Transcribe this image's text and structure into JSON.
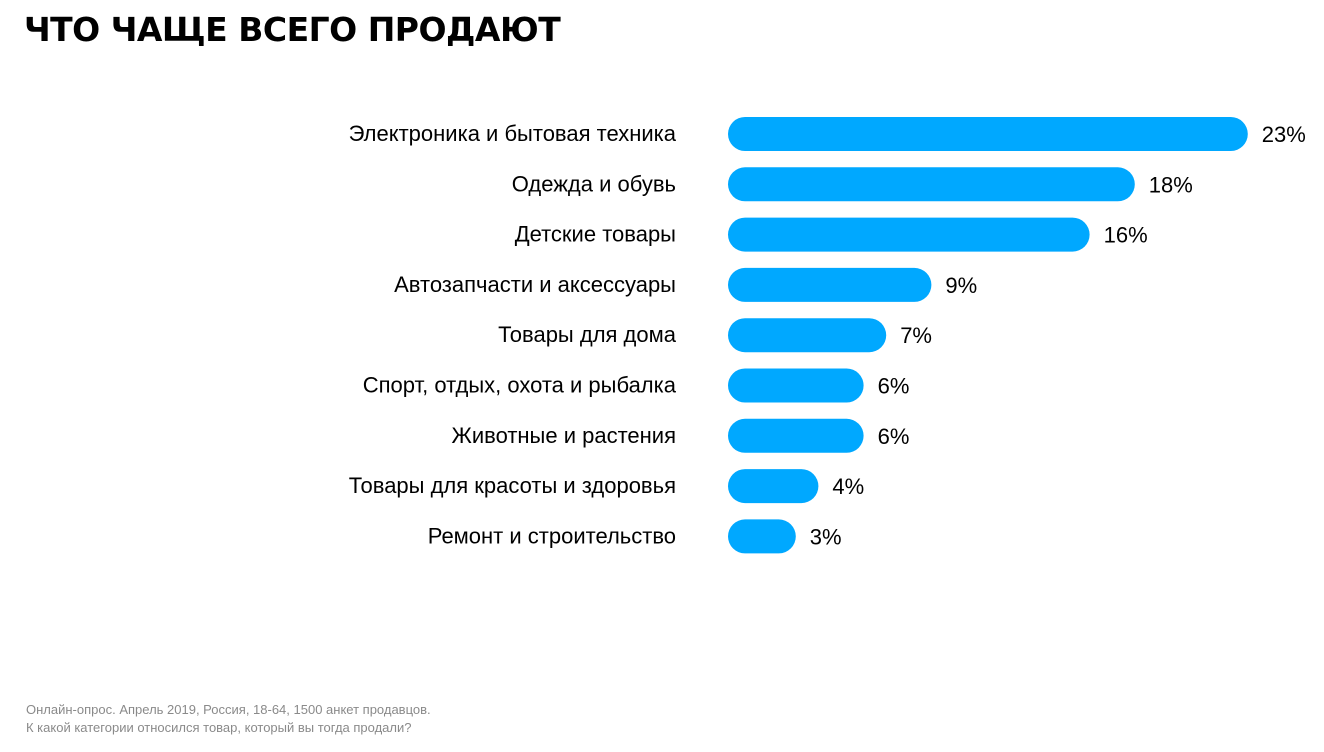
{
  "title": "ЧТО ЧАЩЕ ВСЕГО ПРОДАЮТ",
  "colors": {
    "bar": "#00a8ff",
    "text": "#000000",
    "footnote": "#8a8a8a"
  },
  "chart_data": {
    "type": "bar",
    "orientation": "horizontal",
    "categories": [
      "Электроника и бытовая техника",
      "Одежда и обувь",
      "Детские товары",
      "Автозапчасти и аксессуары",
      "Товары для дома",
      "Спорт, отдых, охота и рыбалка",
      "Животные и растения",
      "Товары для красоты и здоровья",
      "Ремонт и строительство"
    ],
    "values": [
      23,
      18,
      16,
      9,
      7,
      6,
      6,
      4,
      3
    ],
    "value_labels": [
      "23%",
      "18%",
      "16%",
      "9%",
      "7%",
      "6%",
      "6%",
      "4%",
      "3%"
    ],
    "unit": "%",
    "grid": false,
    "legend": "none"
  },
  "footnote": {
    "line1": "Онлайн-опрос. Апрель 2019, Россия, 18-64, 1500 анкет продавцов.",
    "line2": "К какой категории относился товар, который вы тогда продали?"
  }
}
